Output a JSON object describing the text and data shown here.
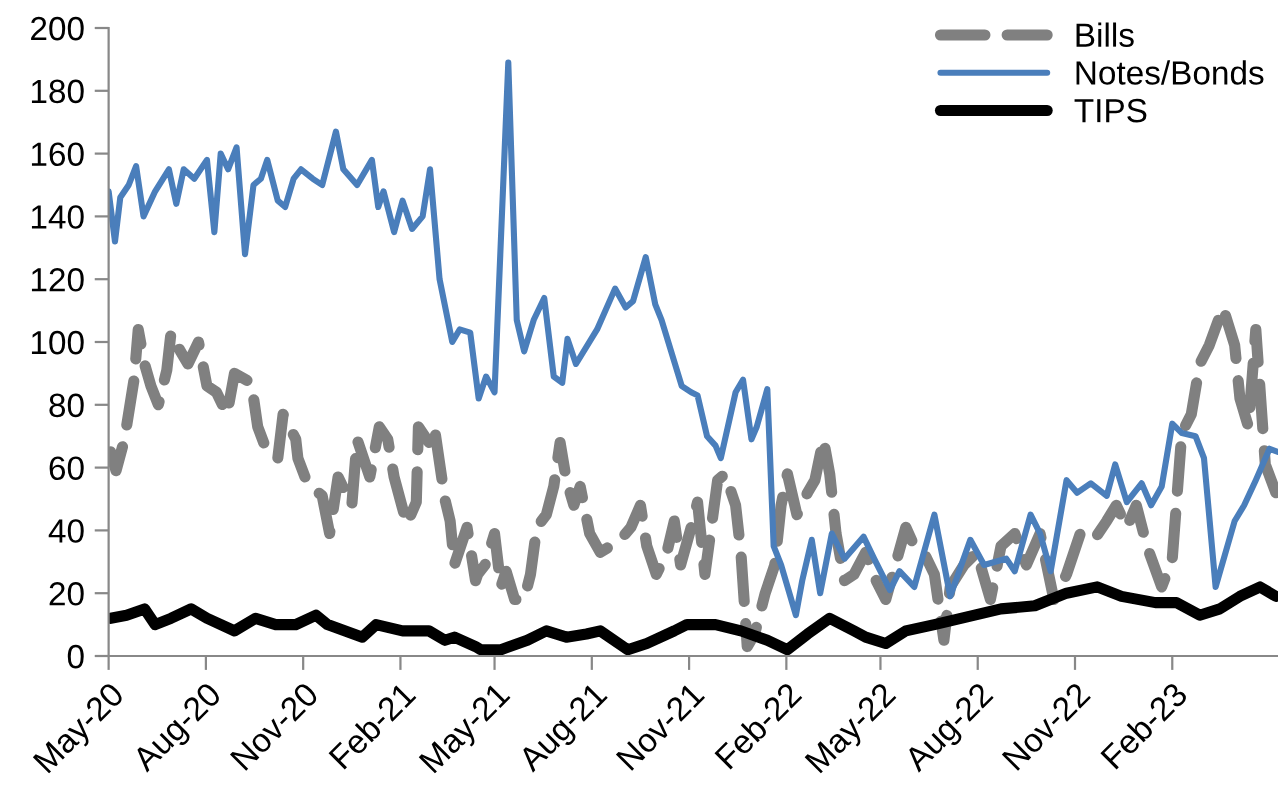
{
  "chart_data": {
    "type": "line",
    "xlim": [
      "2020-05-01",
      "2023-05-12"
    ],
    "xticks": [
      {
        "value": "2020-05-01",
        "label": "May-20"
      },
      {
        "value": "2020-08-01",
        "label": "Aug-20"
      },
      {
        "value": "2020-11-01",
        "label": "Nov-20"
      },
      {
        "value": "2021-02-01",
        "label": "Feb-21"
      },
      {
        "value": "2021-05-01",
        "label": "May-21"
      },
      {
        "value": "2021-08-01",
        "label": "Aug-21"
      },
      {
        "value": "2021-11-01",
        "label": "Nov-21"
      },
      {
        "value": "2022-02-01",
        "label": "Feb-22"
      },
      {
        "value": "2022-05-01",
        "label": "May-22"
      },
      {
        "value": "2022-08-01",
        "label": "Aug-22"
      },
      {
        "value": "2022-11-01",
        "label": "Nov-22"
      },
      {
        "value": "2023-02-01",
        "label": "Feb-23"
      }
    ],
    "ylim": [
      0,
      200
    ],
    "yticks": [
      0,
      20,
      40,
      60,
      80,
      100,
      120,
      140,
      160,
      180,
      200
    ],
    "grid": false,
    "legend": "top right",
    "marker": "none",
    "series": [
      {
        "name": "Bills",
        "color": "#808080",
        "line_style": "dashed",
        "x": [
          "2020-05-03",
          "2020-05-08",
          "2020-05-16",
          "2020-05-25",
          "2020-05-29",
          "2020-06-04",
          "2020-06-10",
          "2020-06-17",
          "2020-06-25",
          "2020-06-29",
          "2020-07-08",
          "2020-07-15",
          "2020-07-25",
          "2020-08-02",
          "2020-08-11",
          "2020-08-21",
          "2020-08-28",
          "2020-09-13",
          "2020-09-19",
          "2020-09-28",
          "2020-10-08",
          "2020-10-13",
          "2020-10-25",
          "2020-10-27",
          "2020-11-05",
          "2020-11-19",
          "2020-11-26",
          "2020-12-04",
          "2020-12-17",
          "2020-12-22",
          "2021-01-03",
          "2021-01-12",
          "2021-01-20",
          "2021-01-26",
          "2021-02-07",
          "2021-02-16",
          "2021-02-18",
          "2021-02-28",
          "2021-03-05",
          "2021-03-15",
          "2021-03-20",
          "2021-03-24",
          "2021-04-05",
          "2021-04-13",
          "2021-04-15",
          "2021-04-22",
          "2021-05-01",
          "2021-05-07",
          "2021-05-12",
          "2021-05-20",
          "2021-05-29",
          "2021-06-04",
          "2021-06-10",
          "2021-06-19",
          "2021-06-26",
          "2021-07-02",
          "2021-07-08",
          "2021-07-15",
          "2021-07-21",
          "2021-07-30",
          "2021-08-09",
          "2021-08-28",
          "2021-09-07",
          "2021-09-16",
          "2021-09-22",
          "2021-10-01",
          "2021-10-11",
          "2021-10-18",
          "2021-10-24",
          "2021-11-03",
          "2021-11-09",
          "2021-11-16",
          "2021-11-28",
          "2021-12-05",
          "2021-12-15",
          "2021-12-20",
          "2021-12-26",
          "2022-01-02",
          "2022-01-12",
          "2022-01-21",
          "2022-01-27",
          "2022-02-02",
          "2022-02-11",
          "2022-02-21",
          "2022-02-28",
          "2022-03-08",
          "2022-03-14",
          "2022-03-20",
          "2022-03-28",
          "2022-04-06",
          "2022-04-17",
          "2022-04-27",
          "2022-05-06",
          "2022-05-25",
          "2022-06-02",
          "2022-06-11",
          "2022-06-21",
          "2022-06-30",
          "2022-07-06",
          "2022-07-19",
          "2022-07-31",
          "2022-08-13",
          "2022-08-23",
          "2022-09-05",
          "2022-09-16",
          "2022-09-29",
          "2022-10-12",
          "2022-10-24",
          "2022-11-06",
          "2022-11-19",
          "2022-12-01",
          "2022-12-10",
          "2022-12-20",
          "2022-12-29",
          "2023-01-08",
          "2023-01-22",
          "2023-02-01",
          "2023-02-10",
          "2023-02-19",
          "2023-02-27",
          "2023-03-08",
          "2023-03-21",
          "2023-04-01",
          "2023-04-06",
          "2023-04-14",
          "2023-04-21",
          "2023-04-30",
          "2023-05-10"
        ],
        "values": [
          65,
          59,
          69,
          88,
          104,
          93,
          86,
          80,
          91,
          103,
          97,
          93,
          100,
          86,
          84,
          77,
          90,
          87,
          73,
          65,
          63,
          77,
          69,
          63,
          55,
          51,
          39,
          57,
          48,
          69,
          57,
          73,
          69,
          57,
          42,
          49,
          73,
          68,
          73,
          50,
          43,
          29,
          41,
          24,
          26,
          29,
          39,
          22,
          27,
          18,
          18,
          26,
          41,
          45,
          54,
          68,
          56,
          48,
          54,
          39,
          33,
          37,
          41,
          48,
          35,
          26,
          33,
          43,
          29,
          41,
          49,
          26,
          56,
          58,
          48,
          33,
          3,
          7,
          20,
          29,
          48,
          58,
          45,
          52,
          56,
          69,
          58,
          39,
          24,
          26,
          33,
          24,
          18,
          41,
          35,
          33,
          26,
          5,
          22,
          29,
          33,
          18,
          35,
          39,
          29,
          39,
          18,
          26,
          39,
          37,
          43,
          48,
          41,
          48,
          35,
          22,
          31,
          71,
          77,
          93,
          99,
          111,
          99,
          82,
          73,
          104,
          61,
          52
        ]
      },
      {
        "name": "Notes/Bonds",
        "color": "#4a7ebb",
        "line_style": "solid",
        "x": [
          "2020-05-01",
          "2020-05-07",
          "2020-05-12",
          "2020-05-20",
          "2020-05-27",
          "2020-06-03",
          "2020-06-14",
          "2020-06-27",
          "2020-07-04",
          "2020-07-11",
          "2020-07-21",
          "2020-08-02",
          "2020-08-09",
          "2020-08-15",
          "2020-08-22",
          "2020-08-30",
          "2020-09-07",
          "2020-09-15",
          "2020-09-22",
          "2020-09-28",
          "2020-10-08",
          "2020-10-15",
          "2020-10-23",
          "2020-10-30",
          "2020-11-10",
          "2020-11-19",
          "2020-12-02",
          "2020-12-09",
          "2020-12-22",
          "2021-01-05",
          "2021-01-11",
          "2021-01-16",
          "2021-01-26",
          "2021-02-03",
          "2021-02-12",
          "2021-02-22",
          "2021-03-01",
          "2021-03-10",
          "2021-03-22",
          "2021-03-29",
          "2021-04-08",
          "2021-04-16",
          "2021-04-23",
          "2021-05-01",
          "2021-05-14",
          "2021-05-22",
          "2021-05-29",
          "2021-06-07",
          "2021-06-17",
          "2021-06-26",
          "2021-07-04",
          "2021-07-09",
          "2021-07-17",
          "2021-08-06",
          "2021-08-23",
          "2021-09-02",
          "2021-09-09",
          "2021-09-21",
          "2021-09-30",
          "2021-10-06",
          "2021-10-25",
          "2021-11-03",
          "2021-11-09",
          "2021-11-18",
          "2021-11-26",
          "2021-12-01",
          "2021-12-15",
          "2021-12-22",
          "2021-12-30",
          "2022-01-04",
          "2022-01-14",
          "2022-01-20",
          "2022-01-27",
          "2022-02-10",
          "2022-02-16",
          "2022-02-25",
          "2022-03-05",
          "2022-03-16",
          "2022-03-28",
          "2022-04-15",
          "2022-04-25",
          "2022-05-10",
          "2022-05-19",
          "2022-06-02",
          "2022-06-21",
          "2022-07-06",
          "2022-07-25",
          "2022-08-07",
          "2022-08-28",
          "2022-09-05",
          "2022-09-20",
          "2022-09-29",
          "2022-10-09",
          "2022-10-24",
          "2022-11-03",
          "2022-11-16",
          "2022-12-01",
          "2022-12-09",
          "2022-12-20",
          "2023-01-03",
          "2023-01-12",
          "2023-01-22",
          "2023-02-01",
          "2023-02-10",
          "2023-02-23",
          "2023-03-03",
          "2023-03-14",
          "2023-04-01",
          "2023-04-10",
          "2023-04-21",
          "2023-05-04",
          "2023-05-12"
        ],
        "values": [
          148,
          132,
          146,
          150,
          156,
          140,
          148,
          155,
          144,
          155,
          152,
          158,
          135,
          160,
          155,
          162,
          128,
          150,
          152,
          158,
          145,
          143,
          152,
          155,
          152,
          150,
          167,
          155,
          150,
          158,
          143,
          148,
          135,
          145,
          136,
          140,
          155,
          120,
          100,
          104,
          103,
          82,
          89,
          84,
          189,
          107,
          97,
          107,
          114,
          89,
          87,
          101,
          93,
          104,
          117,
          111,
          113,
          127,
          112,
          107,
          86,
          84,
          83,
          70,
          67,
          63,
          84,
          88,
          69,
          73,
          85,
          35,
          29,
          13,
          24,
          37,
          20,
          39,
          31,
          38,
          31,
          21,
          27,
          22,
          45,
          19,
          37,
          29,
          31,
          27,
          45,
          39,
          27,
          56,
          52,
          55,
          51,
          61,
          49,
          55,
          48,
          54,
          74,
          71,
          70,
          63,
          22,
          43,
          48,
          56,
          66,
          65
        ]
      },
      {
        "name": "TIPS",
        "color": "#000000",
        "line_style": "solid",
        "x": [
          "2020-05-03",
          "2020-05-18",
          "2020-06-04",
          "2020-06-14",
          "2020-06-29",
          "2020-07-18",
          "2020-08-02",
          "2020-08-28",
          "2020-09-17",
          "2020-10-06",
          "2020-10-25",
          "2020-11-13",
          "2020-11-24",
          "2020-12-27",
          "2021-01-09",
          "2021-02-03",
          "2021-02-28",
          "2021-03-15",
          "2021-03-24",
          "2021-04-13",
          "2021-04-18",
          "2021-05-07",
          "2021-06-01",
          "2021-06-19",
          "2021-07-08",
          "2021-07-27",
          "2021-08-09",
          "2021-09-04",
          "2021-09-22",
          "2021-10-18",
          "2021-10-30",
          "2021-11-12",
          "2021-11-26",
          "2021-12-20",
          "2022-01-14",
          "2022-02-02",
          "2022-02-21",
          "2022-03-14",
          "2022-04-06",
          "2022-04-17",
          "2022-05-06",
          "2022-05-25",
          "2022-06-21",
          "2022-07-29",
          "2022-08-23",
          "2022-09-24",
          "2022-10-24",
          "2022-11-22",
          "2022-12-15",
          "2023-01-16",
          "2023-02-05",
          "2023-02-27",
          "2023-03-18",
          "2023-04-06",
          "2023-04-25",
          "2023-05-10"
        ],
        "values": [
          12,
          13,
          15,
          10,
          12,
          15,
          12,
          8,
          12,
          10,
          10,
          13,
          10,
          6,
          10,
          8,
          8,
          5,
          6,
          3,
          2,
          2,
          5,
          8,
          6,
          7,
          8,
          2,
          4,
          8,
          10,
          10,
          10,
          8,
          5,
          2,
          7,
          12,
          8,
          6,
          4,
          8,
          10,
          13,
          15,
          16,
          20,
          22,
          19,
          17,
          17,
          13,
          15,
          19,
          22,
          19
        ]
      }
    ]
  }
}
